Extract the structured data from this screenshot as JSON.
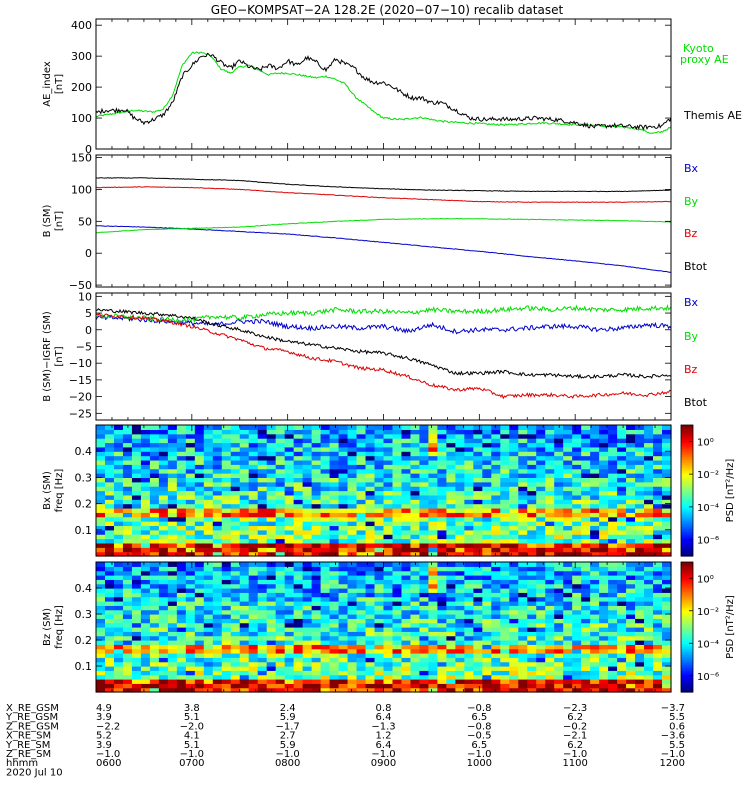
{
  "title": "GEO−KOMPSAT−2A 128.2E (2020−07−10) recalib dataset",
  "colors": {
    "black": "#000000",
    "green": "#00dd00",
    "blue": "#0000cc",
    "red": "#dd0000"
  },
  "chart_data": [
    {
      "type": "line",
      "ylabel": "AE_index",
      "yunit": "[nT]",
      "ylim": [
        0,
        420
      ],
      "yticks": [
        "0",
        "100",
        "200",
        "300",
        "400"
      ],
      "ytick_values": [
        0,
        100,
        200,
        300,
        400
      ],
      "x_hours": [
        6.0,
        6.1,
        6.2,
        6.3,
        6.4,
        6.5,
        6.6,
        6.7,
        6.8,
        6.9,
        7.0,
        7.1,
        7.2,
        7.3,
        7.4,
        7.5,
        7.6,
        7.7,
        7.8,
        7.9,
        8.0,
        8.1,
        8.2,
        8.3,
        8.4,
        8.5,
        8.6,
        8.7,
        8.8,
        8.9,
        9.0,
        9.1,
        9.2,
        9.3,
        9.4,
        9.5,
        9.6,
        9.7,
        9.8,
        9.9,
        10.0,
        10.1,
        10.2,
        10.3,
        10.4,
        10.5,
        10.6,
        10.7,
        10.8,
        10.9,
        11.0,
        11.1,
        11.2,
        11.3,
        11.4,
        11.5,
        11.6,
        11.7,
        11.8,
        11.9,
        12.0
      ],
      "series": [
        {
          "name": "Kyoto\nproxy AE",
          "color": "#00dd00",
          "values": [
            105,
            110,
            115,
            120,
            125,
            122,
            120,
            128,
            175,
            270,
            310,
            312,
            300,
            260,
            245,
            265,
            270,
            255,
            240,
            245,
            245,
            240,
            235,
            230,
            235,
            225,
            210,
            170,
            145,
            120,
            100,
            97,
            95,
            100,
            102,
            95,
            90,
            87,
            85,
            84,
            82,
            80,
            79,
            78,
            80,
            82,
            84,
            84,
            82,
            80,
            79,
            78,
            76,
            74,
            72,
            70,
            68,
            62,
            50,
            55,
            70
          ]
        },
        {
          "name": "Themis AE",
          "color": "#000000",
          "values": [
            118,
            125,
            125,
            128,
            100,
            85,
            95,
            110,
            150,
            235,
            270,
            300,
            305,
            280,
            260,
            285,
            265,
            255,
            270,
            260,
            285,
            270,
            295,
            280,
            255,
            290,
            275,
            260,
            230,
            215,
            215,
            200,
            180,
            165,
            165,
            150,
            150,
            135,
            118,
            100,
            97,
            95,
            98,
            95,
            97,
            98,
            100,
            97,
            95,
            90,
            85,
            78,
            72,
            74,
            76,
            74,
            72,
            70,
            72,
            74,
            100
          ]
        }
      ],
      "legend": [
        "Kyoto\nproxy AE",
        "Themis AE"
      ]
    },
    {
      "type": "line",
      "ylabel": "B (SM)",
      "yunit": "[nT]",
      "ylim": [
        -53,
        154
      ],
      "yticks": [
        "−50",
        "0",
        "50",
        "100",
        "150"
      ],
      "ytick_values": [
        -50,
        0,
        50,
        100,
        150
      ],
      "x_hours": [
        6.0,
        6.5,
        7.0,
        7.5,
        8.0,
        8.5,
        9.0,
        9.5,
        10.0,
        10.5,
        11.0,
        11.5,
        12.0
      ],
      "series": [
        {
          "name": "Bx",
          "color": "#0000cc",
          "values": [
            43,
            41,
            38,
            34,
            30,
            24,
            17,
            10,
            3,
            -5,
            -12,
            -20,
            -30
          ]
        },
        {
          "name": "By",
          "color": "#00dd00",
          "values": [
            32,
            37,
            39,
            41,
            46,
            50,
            53,
            54,
            54,
            53,
            52,
            51,
            49
          ]
        },
        {
          "name": "Bz",
          "color": "#dd0000",
          "values": [
            103,
            104,
            103,
            100,
            95,
            91,
            87,
            84,
            81,
            80,
            80,
            80,
            81
          ]
        },
        {
          "name": "Btot",
          "color": "#000000",
          "values": [
            118,
            118,
            116,
            114,
            108,
            104,
            101,
            99,
            98,
            97,
            97,
            97,
            99
          ]
        }
      ],
      "legend": [
        "Bx",
        "By",
        "Bz",
        "Btot"
      ]
    },
    {
      "type": "line",
      "ylabel": "B (SM)−IGRF (SM)",
      "yunit": "[nT]",
      "ylim": [
        -27,
        11
      ],
      "yticks": [
        "−25",
        "−20",
        "−15",
        "−10",
        "−5",
        "0",
        "5",
        "10"
      ],
      "ytick_values": [
        -25,
        -20,
        -15,
        -10,
        -5,
        0,
        5,
        10
      ],
      "x_hours": [
        6.0,
        6.25,
        6.5,
        6.75,
        7.0,
        7.25,
        7.5,
        7.75,
        8.0,
        8.25,
        8.5,
        8.75,
        9.0,
        9.25,
        9.5,
        9.75,
        10.0,
        10.25,
        10.5,
        10.75,
        11.0,
        11.25,
        11.5,
        11.75,
        12.0
      ],
      "series": [
        {
          "name": "Bx",
          "color": "#0000cc",
          "values": [
            3.5,
            3.5,
            3.0,
            2.5,
            2.0,
            1.5,
            2.5,
            2.5,
            1.0,
            0.5,
            1.0,
            0.5,
            1.0,
            -0.5,
            1.5,
            -0.5,
            0.0,
            0.0,
            0.5,
            1.0,
            1.0,
            0.0,
            0.5,
            1.5,
            1.0
          ]
        },
        {
          "name": "By",
          "color": "#00dd00",
          "values": [
            4.0,
            4.0,
            3.5,
            3.0,
            3.0,
            4.0,
            3.5,
            4.5,
            5.0,
            5.0,
            6.0,
            5.5,
            5.5,
            5.0,
            6.0,
            5.5,
            5.5,
            6.0,
            6.5,
            6.0,
            6.5,
            6.0,
            6.0,
            6.5,
            6.5
          ]
        },
        {
          "name": "Bz",
          "color": "#dd0000",
          "values": [
            4.5,
            4.0,
            3.5,
            2.5,
            1.0,
            -1.0,
            -3.0,
            -5.5,
            -6.5,
            -8.5,
            -9.5,
            -11.5,
            -12.0,
            -14.0,
            -16.5,
            -18.0,
            -17.5,
            -20.0,
            -19.5,
            -19.5,
            -20.0,
            -19.5,
            -19.0,
            -19.5,
            -18.5
          ]
        },
        {
          "name": "Btot",
          "color": "#000000",
          "values": [
            6.0,
            5.5,
            5.0,
            4.5,
            3.5,
            1.5,
            0.0,
            -2.0,
            -3.5,
            -4.5,
            -5.5,
            -6.5,
            -7.0,
            -8.5,
            -10.5,
            -13.0,
            -13.0,
            -12.5,
            -13.5,
            -13.5,
            -14.0,
            -14.0,
            -13.5,
            -14.0,
            -13.5
          ]
        }
      ],
      "legend": [
        "Bx",
        "By",
        "Bz",
        "Btot"
      ]
    },
    {
      "type": "heatmap",
      "ylabel": "Bx (SM)",
      "yunit": "freq [Hz]",
      "ylim": [
        0,
        0.5
      ],
      "yticks": [
        "0.1",
        "0.2",
        "0.3",
        "0.4"
      ],
      "ytick_values": [
        0.1,
        0.2,
        0.3,
        0.4
      ],
      "band_hz": 0.17,
      "event_hour": 9.5,
      "colorbar_label": "PSD [nT²/Hz]",
      "colorbar_ticks": [
        "10⁰",
        "10⁻²",
        "10⁻⁴",
        "10⁻⁶"
      ],
      "colorbar_exponents": [
        0,
        -2,
        -4,
        -6
      ],
      "colorbar_range": [
        -7,
        1
      ]
    },
    {
      "type": "heatmap",
      "ylabel": "Bz (SM)",
      "yunit": "freq [Hz]",
      "ylim": [
        0,
        0.5
      ],
      "yticks": [
        "0.1",
        "0.2",
        "0.3",
        "0.4"
      ],
      "ytick_values": [
        0.1,
        0.2,
        0.3,
        0.4
      ],
      "band_hz": 0.17,
      "event_hour": 9.5,
      "colorbar_label": "PSD [nT²/Hz]",
      "colorbar_ticks": [
        "10⁰",
        "10⁻²",
        "10⁻⁴",
        "10⁻⁶"
      ],
      "colorbar_exponents": [
        0,
        -2,
        -4,
        -6
      ],
      "colorbar_range": [
        -7,
        1
      ]
    }
  ],
  "xaxis": {
    "xlim": [
      6,
      12
    ],
    "major_hours": [
      6,
      7,
      8,
      9,
      10,
      11,
      12
    ],
    "rows": [
      {
        "label": "X_RE_GSM",
        "values": [
          "4.9",
          "3.8",
          "2.4",
          "0.8",
          "−0.8",
          "−2.3",
          "−3.7"
        ]
      },
      {
        "label": "Y_RE_GSM",
        "values": [
          "3.9",
          "5.1",
          "5.9",
          "6.4",
          "6.5",
          "6.2",
          "5.5"
        ]
      },
      {
        "label": "Z_RE_GSM",
        "values": [
          "−2.2",
          "−2.0",
          "−1.7",
          "−1.3",
          "−0.8",
          "−0.2",
          "0.6"
        ]
      },
      {
        "label": "X_RE_SM",
        "values": [
          "5.2",
          "4.1",
          "2.7",
          "1.2",
          "−0.5",
          "−2.1",
          "−3.6"
        ]
      },
      {
        "label": "Y_RE_SM",
        "values": [
          "3.9",
          "5.1",
          "5.9",
          "6.4",
          "6.5",
          "6.2",
          "5.5"
        ]
      },
      {
        "label": "Z_RE_SM",
        "values": [
          "−1.0",
          "−1.0",
          "−1.0",
          "−1.0",
          "−1.0",
          "−1.0",
          "−1.0"
        ]
      },
      {
        "label": "hhmm",
        "values": [
          "0600",
          "0700",
          "0800",
          "0900",
          "1000",
          "1100",
          "1200"
        ]
      }
    ],
    "date": "2020 Jul 10"
  }
}
